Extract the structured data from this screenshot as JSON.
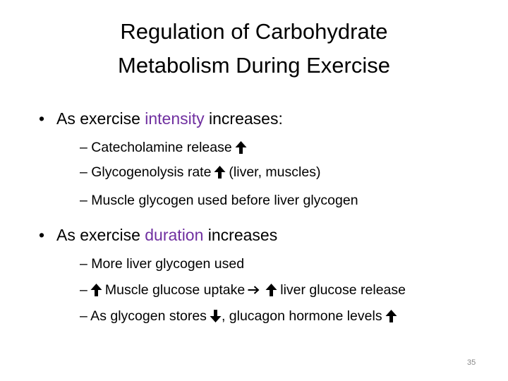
{
  "title": [
    "Regulation of Carbohydrate",
    "Metabolism During Exercise"
  ],
  "bullets": [
    {
      "text": [
        "As exercise",
        "intensity",
        "increases:"
      ],
      "subs": [
        [
          "– Catecholamine release"
        ],
        [
          "– Glycogenolysis rate",
          "(liver, muscles)"
        ],
        [
          "– Muscle glycogen used before liver glycogen"
        ]
      ]
    },
    {
      "text": [
        "As exercise",
        "duration",
        "increases"
      ],
      "subs": [
        [
          "– More liver glycogen used"
        ],
        [
          "–",
          "Muscle glucose uptake",
          "liver glucose release"
        ],
        [
          "– As glycogen stores",
          ", glucagon hormone levels"
        ]
      ]
    }
  ],
  "page_number": "35"
}
